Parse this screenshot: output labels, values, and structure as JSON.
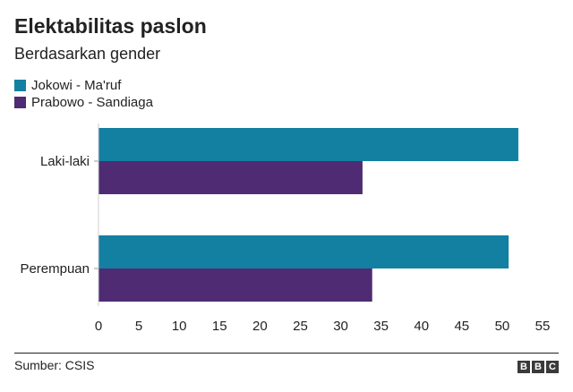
{
  "chart_data": {
    "type": "bar",
    "orientation": "horizontal",
    "title": "Elektabilitas paslon",
    "subtitle": "Berdasarkan gender",
    "categories": [
      "Laki-laki",
      "Perempuan"
    ],
    "series": [
      {
        "name": "Jokowi - Ma'ruf",
        "color": "#1380a1",
        "values": [
          52,
          50.8
        ]
      },
      {
        "name": "Prabowo - Sandiaga",
        "color": "#4e2b73",
        "values": [
          32.7,
          33.9
        ]
      }
    ],
    "xlim": [
      0,
      55
    ],
    "xticks": [
      "0",
      "5",
      "10",
      "15",
      "20",
      "25",
      "30",
      "35",
      "40",
      "45",
      "50",
      "55"
    ],
    "legend_position": "top-left",
    "grid": false,
    "source": "Sumber: CSIS"
  },
  "logo": {
    "letters": [
      "B",
      "B",
      "C"
    ]
  }
}
